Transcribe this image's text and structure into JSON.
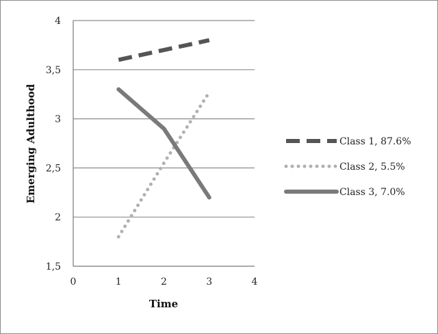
{
  "chart_data": {
    "type": "line",
    "title": "",
    "xlabel": "Time",
    "ylabel": "Emerging Adulthood",
    "xlim": [
      0,
      4
    ],
    "ylim": [
      1.5,
      4
    ],
    "x_ticks": [
      0,
      1,
      2,
      3,
      4
    ],
    "x_tick_labels": [
      "0",
      "1",
      "2",
      "3",
      "4"
    ],
    "y_ticks": [
      1.5,
      2,
      2.5,
      3,
      3.5,
      4
    ],
    "y_tick_labels": [
      "1,5",
      "2",
      "2,5",
      "3",
      "3,5",
      "4"
    ],
    "grid": true,
    "legend_position": "right",
    "series": [
      {
        "name": "Class 1, 87.6%",
        "x": [
          1,
          2,
          3
        ],
        "y": [
          3.6,
          3.7,
          3.8
        ],
        "style": "dashed",
        "color": "#555555"
      },
      {
        "name": "Class 2, 5.5%",
        "x": [
          1,
          2,
          3
        ],
        "y": [
          1.8,
          2.55,
          3.27
        ],
        "style": "dotted",
        "color": "#b0b0b0"
      },
      {
        "name": "Class 3, 7.0%",
        "x": [
          1,
          2,
          3
        ],
        "y": [
          3.3,
          2.9,
          2.2
        ],
        "style": "solid",
        "color": "#7a7a7a"
      }
    ]
  }
}
